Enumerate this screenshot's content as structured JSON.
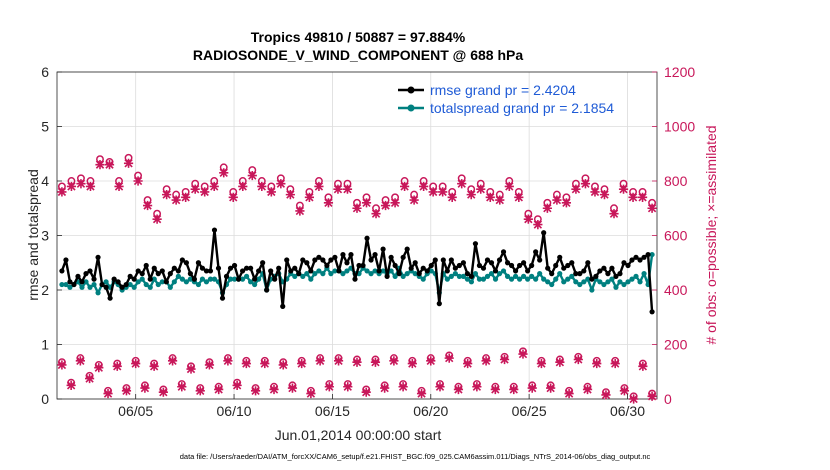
{
  "chart_data": {
    "type": "line",
    "title_line1": "Tropics 49810 / 50887 = 97.884%",
    "title_line2": "RADIOSONDE_V_WIND_COMPONENT @ 688 hPa",
    "xlabel": "Jun.01,2014 00:00:00 start",
    "ylabel_left": "rmse and totalspread",
    "ylabel_right": "# of obs: o=possible; ×=assimilated",
    "xlim": [
      0,
      30.5
    ],
    "ylim_left": [
      0,
      6
    ],
    "ylim_right": [
      0,
      1200
    ],
    "x_ticks": [
      4,
      9,
      14,
      19,
      24,
      29
    ],
    "x_tick_labels": [
      "06/05",
      "06/10",
      "06/15",
      "06/20",
      "06/25",
      "06/30"
    ],
    "y_left_ticks": [
      0,
      1,
      2,
      3,
      4,
      5,
      6
    ],
    "y_left_tick_labels": [
      "0",
      "1",
      "2",
      "3",
      "4",
      "5",
      "6"
    ],
    "y_right_ticks": [
      0,
      200,
      400,
      600,
      800,
      1000,
      1200
    ],
    "y_right_tick_labels": [
      "0",
      "200",
      "400",
      "600",
      "800",
      "1000",
      "1200"
    ],
    "footer": "data file: /Users/raeder/DAI/ATM_forcXX/CAM6_setup/f.e21.FHIST_BGC.f09_025.CAM6assim.011/Diags_NTrS_2014-06/obs_diag_output.nc",
    "colors": {
      "rmse": "#000000",
      "spread": "#008080",
      "obs": "#c8175a",
      "legend_text": "#1f5bd6"
    },
    "series": [
      {
        "name": "rmse grand pr = 2.4204",
        "axis": "left",
        "values": [
          2.35,
          2.55,
          2.15,
          2.1,
          2.25,
          2.15,
          2.3,
          2.35,
          2.2,
          2.6,
          2.1,
          2.05,
          1.85,
          2.2,
          2.15,
          2.05,
          2.1,
          2.25,
          2.2,
          2.35,
          2.3,
          2.45,
          2.2,
          2.4,
          2.3,
          2.35,
          2.15,
          2.3,
          2.4,
          2.35,
          2.55,
          2.5,
          2.3,
          2.2,
          2.5,
          2.4,
          2.35,
          2.35,
          3.1,
          2.4,
          1.85,
          2.25,
          2.4,
          2.45,
          2.2,
          2.35,
          2.4,
          2.4,
          2.2,
          2.35,
          2.5,
          2.0,
          2.35,
          2.2,
          2.4,
          1.7,
          2.55,
          2.35,
          2.4,
          2.3,
          2.55,
          2.5,
          2.35,
          2.55,
          2.6,
          2.55,
          2.45,
          2.55,
          2.6,
          2.35,
          2.65,
          2.5,
          2.65,
          2.2,
          2.45,
          2.45,
          2.95,
          2.55,
          2.65,
          2.35,
          2.75,
          2.25,
          2.6,
          2.45,
          2.3,
          2.6,
          2.75,
          2.4,
          2.5,
          2.3,
          2.4,
          2.35,
          2.45,
          2.55,
          1.75,
          2.55,
          2.35,
          2.55,
          2.4,
          2.45,
          2.5,
          2.3,
          2.25,
          2.85,
          2.45,
          2.4,
          2.55,
          2.5,
          2.35,
          2.55,
          2.7,
          2.5,
          2.45,
          2.35,
          2.45,
          2.5,
          2.35,
          2.45,
          2.7,
          2.55,
          3.05,
          2.4,
          2.3,
          2.45,
          2.6,
          2.4,
          2.45,
          2.5,
          2.3,
          2.3,
          2.35,
          2.5,
          2.2,
          2.25,
          2.35,
          2.4,
          2.3,
          2.4,
          2.25,
          2.3,
          2.5,
          2.45,
          2.55,
          2.6,
          2.55,
          2.6,
          2.65,
          1.6
        ]
      },
      {
        "name": "totalspread grand pr = 2.1854",
        "axis": "left",
        "values": [
          2.1,
          2.1,
          2.05,
          2.1,
          2.15,
          2.05,
          2.15,
          2.05,
          2.1,
          1.95,
          2.1,
          2.15,
          2.05,
          2.15,
          2.1,
          2.0,
          2.05,
          2.1,
          2.05,
          2.15,
          2.2,
          2.1,
          2.05,
          2.2,
          2.1,
          2.15,
          2.15,
          2.05,
          2.15,
          2.25,
          2.2,
          2.15,
          2.2,
          2.15,
          2.1,
          2.2,
          2.15,
          2.2,
          2.2,
          2.15,
          1.95,
          2.1,
          2.2,
          2.2,
          2.2,
          2.2,
          2.25,
          2.15,
          2.1,
          2.2,
          2.3,
          2.0,
          2.2,
          2.25,
          2.3,
          2.15,
          2.2,
          2.3,
          2.25,
          2.3,
          2.25,
          2.3,
          2.2,
          2.3,
          2.35,
          2.3,
          2.4,
          2.3,
          2.35,
          2.35,
          2.3,
          2.35,
          2.4,
          2.3,
          2.3,
          2.4,
          2.35,
          2.3,
          2.35,
          2.3,
          2.35,
          2.3,
          2.35,
          2.25,
          2.4,
          2.25,
          2.3,
          2.35,
          2.3,
          2.25,
          2.2,
          2.3,
          2.35,
          2.3,
          1.95,
          2.3,
          2.2,
          2.25,
          2.3,
          2.25,
          2.25,
          2.2,
          2.15,
          2.3,
          2.2,
          2.2,
          2.25,
          2.3,
          2.2,
          2.3,
          2.35,
          2.25,
          2.2,
          2.25,
          2.2,
          2.25,
          2.2,
          2.25,
          2.2,
          2.3,
          2.2,
          2.15,
          2.1,
          2.2,
          2.3,
          2.15,
          2.2,
          2.25,
          2.15,
          2.1,
          2.15,
          2.2,
          2.0,
          2.2,
          2.15,
          2.1,
          2.15,
          2.2,
          2.05,
          2.15,
          2.1,
          2.15,
          2.2,
          2.25,
          2.15,
          2.3,
          2.1,
          2.65
        ]
      },
      {
        "name": "obs possible (upper)",
        "axis": "right",
        "values": [
          780,
          800,
          810,
          800,
          880,
          870,
          800,
          885,
          820,
          730,
          680,
          770,
          750,
          760,
          790,
          780,
          800,
          850,
          760,
          800,
          840,
          800,
          780,
          810,
          770,
          710,
          760,
          800,
          740,
          790,
          790,
          720,
          740,
          700,
          730,
          740,
          800,
          750,
          800,
          780,
          780,
          760,
          810,
          770,
          790,
          760,
          750,
          800,
          760,
          680,
          660,
          720,
          750,
          740,
          790,
          810,
          780,
          770,
          700,
          790,
          760,
          760,
          720
        ]
      },
      {
        "name": "obs assimilated (upper)",
        "axis": "right",
        "values": [
          760,
          780,
          790,
          780,
          860,
          860,
          780,
          865,
          800,
          710,
          660,
          750,
          730,
          740,
          770,
          760,
          780,
          830,
          740,
          780,
          820,
          780,
          760,
          790,
          750,
          690,
          740,
          780,
          720,
          770,
          770,
          700,
          720,
          680,
          710,
          720,
          780,
          730,
          780,
          760,
          760,
          740,
          790,
          750,
          770,
          740,
          730,
          780,
          740,
          660,
          640,
          700,
          730,
          720,
          770,
          790,
          760,
          750,
          680,
          770,
          740,
          740,
          700
        ]
      },
      {
        "name": "obs possible (lower)",
        "axis": "right",
        "values": [
          135,
          60,
          150,
          85,
          125,
          30,
          130,
          40,
          140,
          50,
          130,
          35,
          150,
          55,
          120,
          40,
          135,
          45,
          150,
          60,
          140,
          40,
          140,
          45,
          135,
          50,
          140,
          30,
          150,
          55,
          150,
          55,
          145,
          35,
          145,
          50,
          150,
          55,
          140,
          30,
          150,
          55,
          160,
          45,
          140,
          55,
          150,
          45,
          155,
          45,
          175,
          50,
          140,
          50,
          145,
          30,
          155,
          45,
          140,
          25,
          140,
          40,
          10,
          130,
          20
        ]
      },
      {
        "name": "obs assimilated (lower)",
        "axis": "right",
        "values": [
          125,
          50,
          140,
          75,
          115,
          20,
          120,
          30,
          130,
          40,
          120,
          25,
          140,
          45,
          110,
          30,
          125,
          35,
          140,
          50,
          130,
          30,
          130,
          35,
          125,
          40,
          130,
          20,
          140,
          45,
          140,
          45,
          135,
          25,
          135,
          40,
          140,
          45,
          130,
          20,
          140,
          45,
          150,
          35,
          130,
          45,
          140,
          35,
          145,
          35,
          165,
          40,
          130,
          40,
          135,
          20,
          145,
          35,
          130,
          15,
          130,
          30,
          0,
          120,
          10
        ]
      }
    ]
  }
}
